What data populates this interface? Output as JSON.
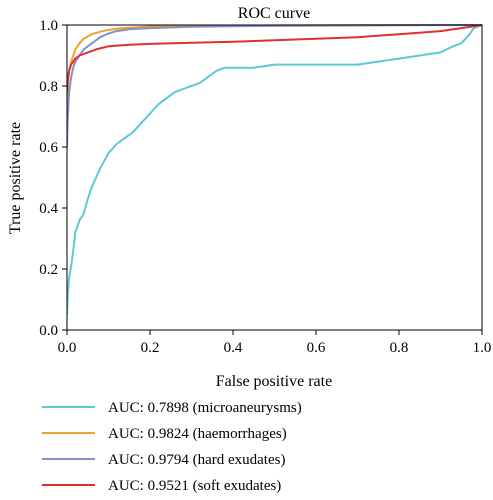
{
  "chart_data": {
    "type": "line",
    "title": "ROC curve",
    "xlabel": "False positive rate",
    "ylabel": "True positive rate",
    "xlim": [
      0,
      1
    ],
    "ylim": [
      0,
      1
    ],
    "x_ticks": [
      "0.0",
      "0.2",
      "0.4",
      "0.6",
      "0.8",
      "1.0"
    ],
    "y_ticks": [
      "0.0",
      "0.2",
      "0.4",
      "0.6",
      "0.8",
      "1.0"
    ],
    "grid": false,
    "legend_position": "below",
    "series": [
      {
        "name": "AUC: 0.7898 (microaneurysms)",
        "color": "#5ec8d8",
        "x": [
          0,
          0.002,
          0.005,
          0.01,
          0.015,
          0.02,
          0.03,
          0.04,
          0.05,
          0.06,
          0.07,
          0.08,
          0.1,
          0.12,
          0.14,
          0.16,
          0.18,
          0.2,
          0.22,
          0.24,
          0.26,
          0.28,
          0.3,
          0.32,
          0.34,
          0.36,
          0.38,
          0.4,
          0.45,
          0.5,
          0.55,
          0.6,
          0.65,
          0.7,
          0.75,
          0.8,
          0.85,
          0.9,
          0.93,
          0.95,
          0.97,
          0.98,
          1.0
        ],
        "y": [
          0.05,
          0.12,
          0.17,
          0.21,
          0.26,
          0.32,
          0.36,
          0.38,
          0.43,
          0.47,
          0.5,
          0.53,
          0.58,
          0.61,
          0.63,
          0.65,
          0.68,
          0.71,
          0.74,
          0.76,
          0.78,
          0.79,
          0.8,
          0.81,
          0.83,
          0.85,
          0.86,
          0.86,
          0.86,
          0.87,
          0.87,
          0.87,
          0.87,
          0.87,
          0.88,
          0.89,
          0.9,
          0.91,
          0.93,
          0.94,
          0.97,
          0.99,
          1.0
        ]
      },
      {
        "name": "AUC: 0.9824 (haemorrhages)",
        "color": "#f0a030",
        "x": [
          0,
          0.002,
          0.005,
          0.01,
          0.015,
          0.02,
          0.03,
          0.04,
          0.06,
          0.08,
          0.1,
          0.12,
          0.15,
          0.2,
          0.3,
          0.4,
          0.6,
          0.8,
          1.0
        ],
        "y": [
          0.72,
          0.8,
          0.85,
          0.88,
          0.9,
          0.92,
          0.94,
          0.955,
          0.97,
          0.978,
          0.984,
          0.988,
          0.991,
          0.995,
          0.997,
          0.998,
          0.999,
          1.0,
          1.0
        ]
      },
      {
        "name": "AUC: 0.9794 (hard exudates)",
        "color": "#8090c8",
        "x": [
          0,
          0.002,
          0.005,
          0.01,
          0.015,
          0.02,
          0.03,
          0.04,
          0.06,
          0.08,
          0.1,
          0.12,
          0.15,
          0.2,
          0.3,
          0.4,
          0.6,
          0.8,
          1.0
        ],
        "y": [
          0.6,
          0.7,
          0.78,
          0.83,
          0.86,
          0.88,
          0.9,
          0.92,
          0.94,
          0.96,
          0.972,
          0.98,
          0.986,
          0.99,
          0.994,
          0.996,
          0.998,
          0.999,
          1.0
        ]
      },
      {
        "name": "AUC: 0.9521 (soft exudates)",
        "color": "#e03030",
        "x": [
          0,
          0.002,
          0.005,
          0.01,
          0.02,
          0.03,
          0.05,
          0.07,
          0.1,
          0.15,
          0.2,
          0.3,
          0.4,
          0.5,
          0.6,
          0.7,
          0.8,
          0.9,
          0.95,
          1.0
        ],
        "y": [
          0.78,
          0.82,
          0.85,
          0.87,
          0.89,
          0.9,
          0.91,
          0.92,
          0.93,
          0.935,
          0.938,
          0.942,
          0.945,
          0.95,
          0.955,
          0.96,
          0.97,
          0.98,
          0.99,
          1.0
        ]
      }
    ]
  }
}
